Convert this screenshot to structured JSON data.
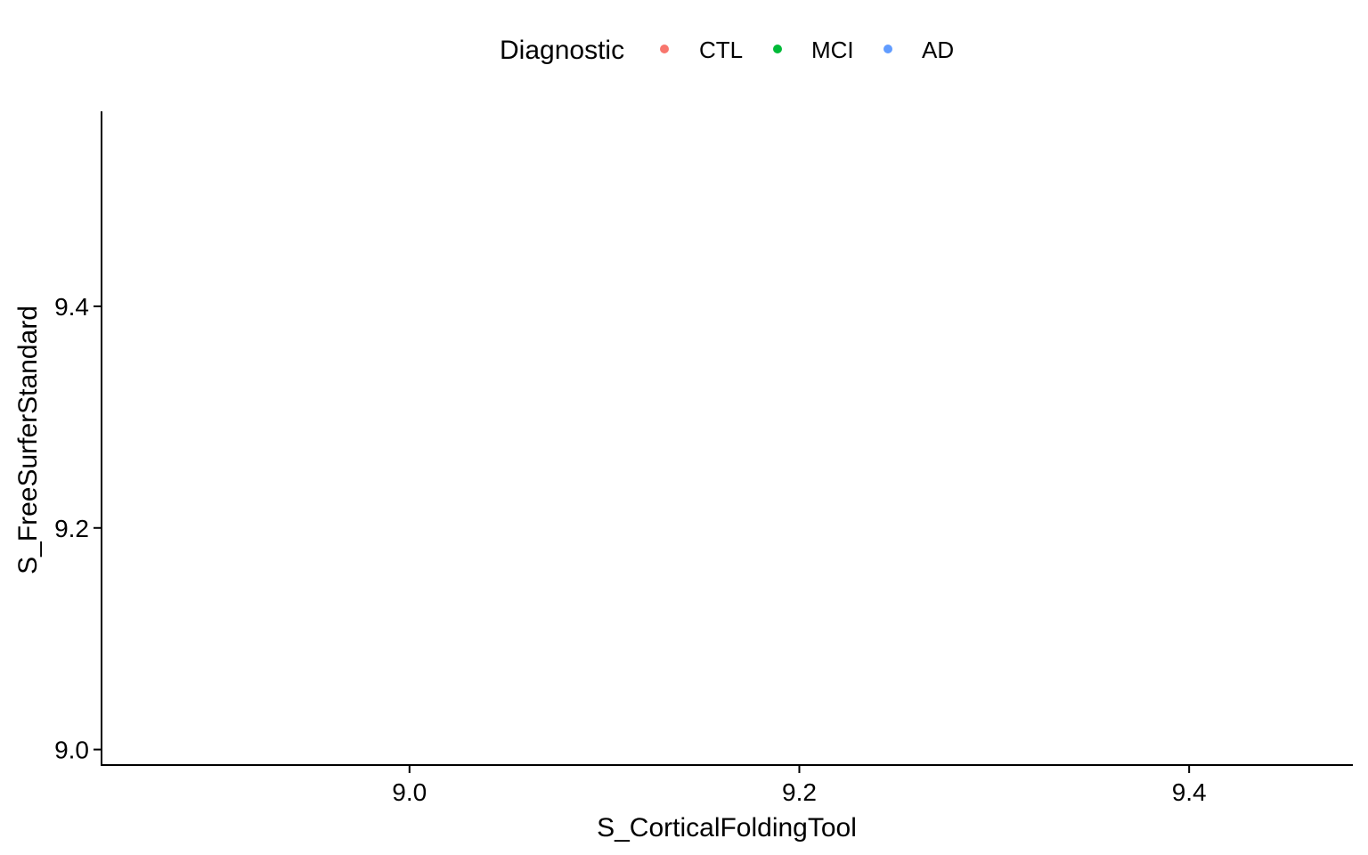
{
  "chart_data": {
    "type": "scatter",
    "title": "",
    "xlabel": "S_CorticalFoldingTool",
    "ylabel": "S_FreeSurferStandard",
    "xlim": [
      8.842,
      9.484
    ],
    "ylim": [
      8.986,
      9.576
    ],
    "x_ticks": [
      {
        "value": 9.0,
        "label": "9.0"
      },
      {
        "value": 9.2,
        "label": "9.2"
      },
      {
        "value": 9.4,
        "label": "9.4"
      }
    ],
    "y_ticks": [
      {
        "value": 9.0,
        "label": "9.0"
      },
      {
        "value": 9.2,
        "label": "9.2"
      },
      {
        "value": 9.4,
        "label": "9.4"
      }
    ],
    "grid": false,
    "legend_position": "top",
    "legend": {
      "title": "Diagnostic",
      "entries": [
        {
          "label": "CTL",
          "color": "#F8766D"
        },
        {
          "label": "MCI",
          "color": "#00BA38"
        },
        {
          "label": "AD",
          "color": "#619CFF"
        }
      ]
    },
    "series": [
      {
        "name": "CTL",
        "color": "#F8766D",
        "points": []
      },
      {
        "name": "MCI",
        "color": "#00BA38",
        "points": []
      },
      {
        "name": "AD",
        "color": "#619CFF",
        "points": []
      }
    ]
  }
}
